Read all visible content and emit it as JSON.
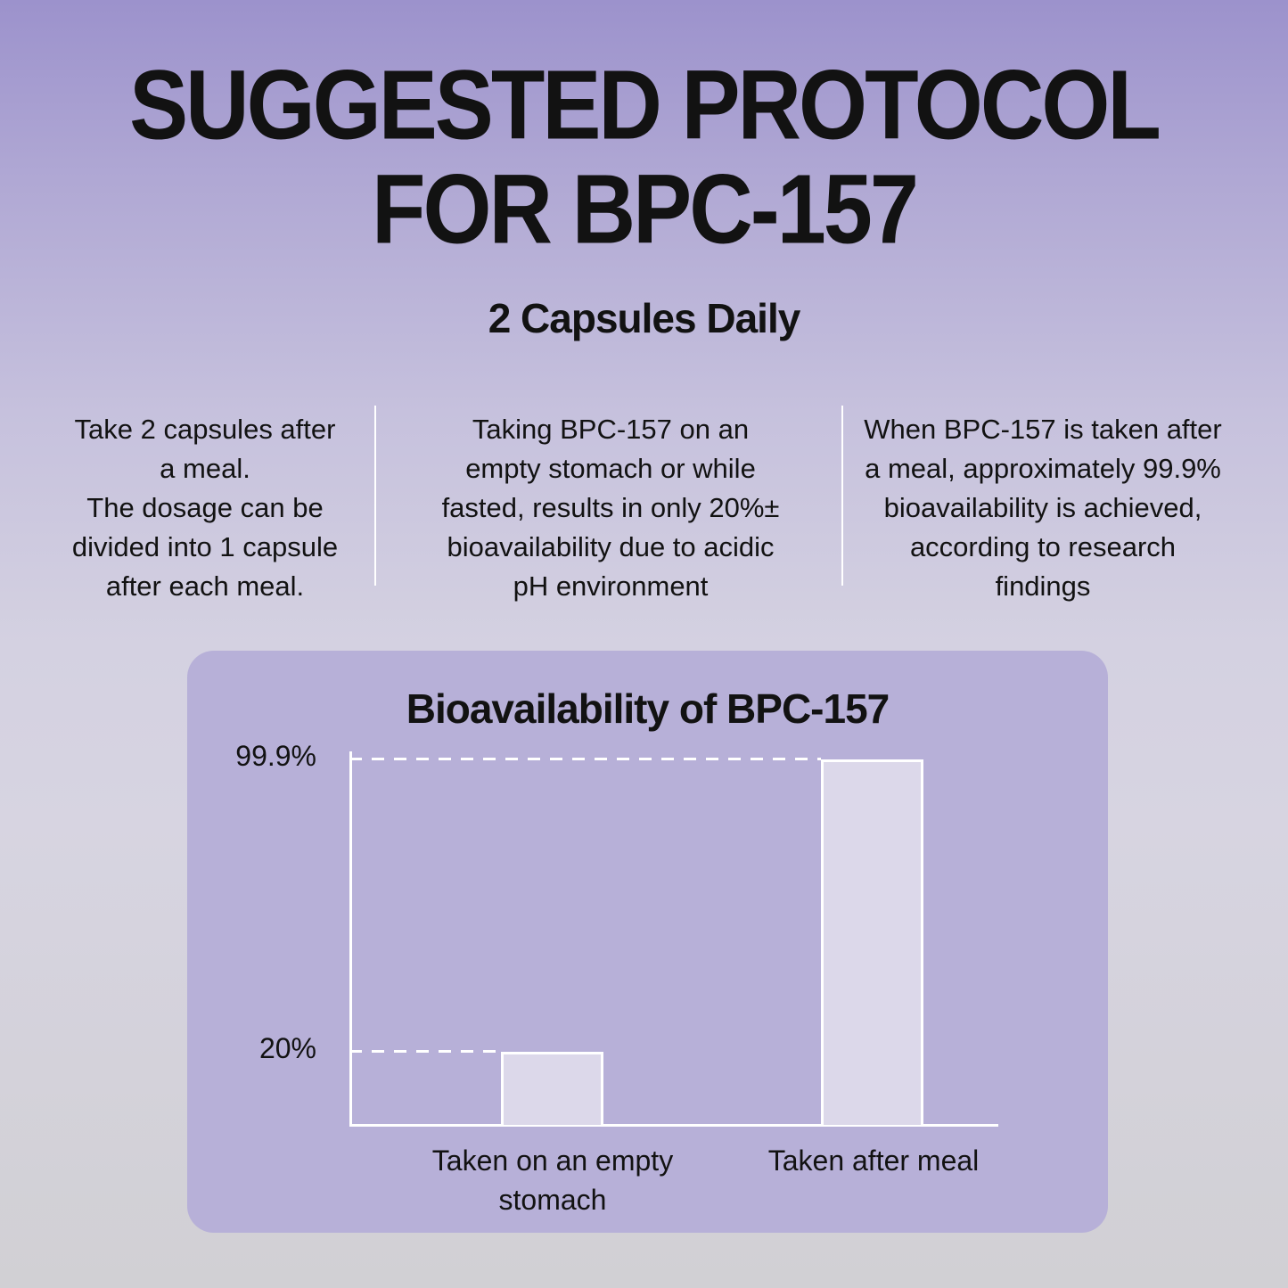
{
  "page": {
    "title": "SUGGESTED PROTOCOL\nFOR BPC-157",
    "subtitle": "2 Capsules Daily"
  },
  "columns": [
    {
      "text": "Take 2 capsules after\na meal.\nThe dosage can be\ndivided into 1 capsule\nafter each meal."
    },
    {
      "text": "Taking BPC-157 on an\nempty stomach or while\nfasted, results in only 20%±\nbioavailability due to acidic\npH environment"
    },
    {
      "text": "When BPC-157 is taken after\na meal, approximately 99.9%\nbioavailability is achieved,\naccording to research\nfindings"
    }
  ],
  "chart_data": {
    "type": "bar",
    "title": "Bioavailability of BPC-157",
    "categories": [
      "Taken on an empty\nstomach",
      "Taken after meal"
    ],
    "values": [
      20,
      99.9
    ],
    "value_labels": [
      "20%",
      "99.9%"
    ],
    "xlabel": "",
    "ylabel": "",
    "ylim": [
      0,
      99.9
    ],
    "grid": "dashed white reference line at each bar top",
    "legend_position": "none"
  },
  "colors": {
    "background_top": "#9c92cc",
    "background_bottom": "#d1d0d4",
    "panel": "#b7b0d8",
    "bar_fill": "#dcd8ea",
    "line": "#ffffff",
    "text": "#121212"
  }
}
